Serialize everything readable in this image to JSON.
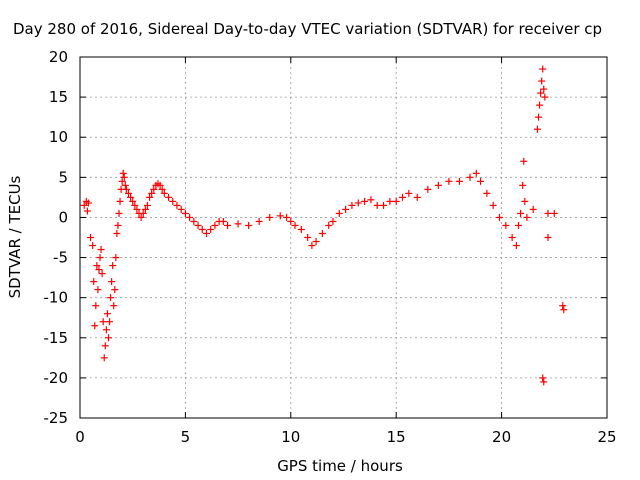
{
  "chart_data": {
    "type": "scatter",
    "title": "Day 280 of 2016, Sidereal Day-to-day VTEC variation (SDTVAR) for receiver cp",
    "xlabel": "GPS time / hours",
    "ylabel": "SDTVAR / TECUs",
    "xlim": [
      0,
      25
    ],
    "ylim": [
      -25,
      20
    ],
    "x_ticks": [
      0,
      5,
      10,
      15,
      20,
      25
    ],
    "y_ticks": [
      -25,
      -20,
      -15,
      -10,
      -5,
      0,
      5,
      10,
      15,
      20
    ],
    "x_tick_labels": [
      "0",
      "5",
      "10",
      "15",
      "20",
      "25"
    ],
    "y_tick_labels": [
      "-25",
      "-20",
      "-15",
      "-10",
      "-5",
      "0",
      "5",
      "10",
      "15",
      "20"
    ],
    "grid": true,
    "marker": "+",
    "marker_color": "#ff0000",
    "series": [
      {
        "name": "SDTVAR",
        "points": [
          [
            0.2,
            1.5
          ],
          [
            0.3,
            2.0
          ],
          [
            0.35,
            0.8
          ],
          [
            0.4,
            1.8
          ],
          [
            0.5,
            -2.5
          ],
          [
            0.6,
            -3.5
          ],
          [
            0.65,
            -8
          ],
          [
            0.7,
            -13.5
          ],
          [
            0.75,
            -11
          ],
          [
            0.8,
            -6
          ],
          [
            0.85,
            -9
          ],
          [
            0.9,
            -6.5
          ],
          [
            0.95,
            -5
          ],
          [
            1.0,
            -4
          ],
          [
            1.05,
            -7
          ],
          [
            1.1,
            -13
          ],
          [
            1.15,
            -17.5
          ],
          [
            1.2,
            -16
          ],
          [
            1.25,
            -14
          ],
          [
            1.3,
            -12
          ],
          [
            1.35,
            -15
          ],
          [
            1.4,
            -13
          ],
          [
            1.45,
            -10
          ],
          [
            1.5,
            -8
          ],
          [
            1.55,
            -6
          ],
          [
            1.6,
            -11
          ],
          [
            1.65,
            -9
          ],
          [
            1.7,
            -5
          ],
          [
            1.75,
            -2
          ],
          [
            1.8,
            -1
          ],
          [
            1.85,
            0.5
          ],
          [
            1.9,
            2
          ],
          [
            1.95,
            3.5
          ],
          [
            2.0,
            4.5
          ],
          [
            2.05,
            5.5
          ],
          [
            2.1,
            5
          ],
          [
            2.15,
            4
          ],
          [
            2.2,
            3.5
          ],
          [
            2.3,
            3
          ],
          [
            2.4,
            2.5
          ],
          [
            2.5,
            2
          ],
          [
            2.6,
            1.5
          ],
          [
            2.7,
            1
          ],
          [
            2.8,
            0.5
          ],
          [
            2.9,
            0
          ],
          [
            3.0,
            0.5
          ],
          [
            3.1,
            1
          ],
          [
            3.2,
            1.5
          ],
          [
            3.3,
            2.5
          ],
          [
            3.4,
            3
          ],
          [
            3.5,
            3.5
          ],
          [
            3.6,
            4
          ],
          [
            3.7,
            4.2
          ],
          [
            3.8,
            4.0
          ],
          [
            3.9,
            3.5
          ],
          [
            4.0,
            3
          ],
          [
            4.2,
            2.5
          ],
          [
            4.4,
            2
          ],
          [
            4.6,
            1.5
          ],
          [
            4.8,
            1
          ],
          [
            5.0,
            0.5
          ],
          [
            5.2,
            0
          ],
          [
            5.4,
            -0.5
          ],
          [
            5.6,
            -1
          ],
          [
            5.8,
            -1.5
          ],
          [
            6.0,
            -2
          ],
          [
            6.2,
            -1.5
          ],
          [
            6.4,
            -1
          ],
          [
            6.6,
            -0.5
          ],
          [
            6.8,
            -0.5
          ],
          [
            7.0,
            -1
          ],
          [
            7.5,
            -0.8
          ],
          [
            8.0,
            -1
          ],
          [
            8.5,
            -0.5
          ],
          [
            9.0,
            0
          ],
          [
            9.5,
            0.2
          ],
          [
            9.8,
            0
          ],
          [
            10.0,
            -0.5
          ],
          [
            10.2,
            -1
          ],
          [
            10.5,
            -1.5
          ],
          [
            10.8,
            -2.5
          ],
          [
            11.0,
            -3.5
          ],
          [
            11.2,
            -3
          ],
          [
            11.5,
            -2
          ],
          [
            11.8,
            -1
          ],
          [
            12.0,
            -0.5
          ],
          [
            12.3,
            0.5
          ],
          [
            12.6,
            1
          ],
          [
            12.9,
            1.5
          ],
          [
            13.2,
            1.8
          ],
          [
            13.5,
            2
          ],
          [
            13.8,
            2.2
          ],
          [
            14.1,
            1.5
          ],
          [
            14.4,
            1.5
          ],
          [
            14.7,
            2
          ],
          [
            15.0,
            2
          ],
          [
            15.3,
            2.5
          ],
          [
            15.6,
            3
          ],
          [
            16.0,
            2.5
          ],
          [
            16.5,
            3.5
          ],
          [
            17.0,
            4
          ],
          [
            17.5,
            4.5
          ],
          [
            18.0,
            4.5
          ],
          [
            18.5,
            5
          ],
          [
            18.8,
            5.5
          ],
          [
            19.0,
            4.5
          ],
          [
            19.3,
            3
          ],
          [
            19.6,
            1.5
          ],
          [
            19.9,
            0
          ],
          [
            20.2,
            -1
          ],
          [
            20.5,
            -2.5
          ],
          [
            20.7,
            -3.5
          ],
          [
            20.8,
            -1
          ],
          [
            20.9,
            0.5
          ],
          [
            21.0,
            4
          ],
          [
            21.05,
            7
          ],
          [
            21.1,
            2
          ],
          [
            21.2,
            0
          ],
          [
            21.5,
            1
          ],
          [
            21.7,
            11
          ],
          [
            21.75,
            12.5
          ],
          [
            21.8,
            14
          ],
          [
            21.85,
            15.5
          ],
          [
            21.9,
            17
          ],
          [
            21.95,
            18.5
          ],
          [
            22.0,
            16
          ],
          [
            22.05,
            15
          ],
          [
            21.95,
            -20
          ],
          [
            22.0,
            -20.5
          ],
          [
            22.2,
            0.5
          ],
          [
            22.2,
            -2.5
          ],
          [
            22.5,
            0.5
          ],
          [
            22.9,
            -11
          ],
          [
            22.95,
            -11.5
          ]
        ]
      }
    ]
  }
}
